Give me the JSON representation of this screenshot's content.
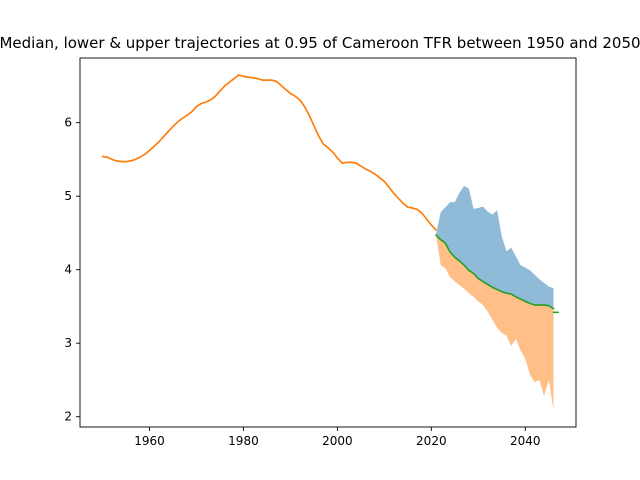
{
  "chart_data": {
    "type": "area",
    "title": "Median, lower & upper trajectories at 0.95 of Cameroon TFR between 1950 and 2050",
    "xlabel": "",
    "ylabel": "",
    "xlim": [
      1945.2,
      2050.8
    ],
    "ylim": [
      1.86,
      6.88
    ],
    "xticks": [
      1960,
      1980,
      2000,
      2020,
      2040
    ],
    "yticks": [
      2,
      3,
      4,
      5,
      6
    ],
    "grid": false,
    "legend": "none",
    "colors": {
      "history": "#ff7f0e",
      "median": "#2ca02c",
      "upper_band": "#1f77b4",
      "lower_band": "#ff7f0e",
      "band_alpha": 0.5
    },
    "history": {
      "x": [
        1950,
        1951,
        1952,
        1953,
        1954,
        1955,
        1956,
        1957,
        1958,
        1959,
        1960,
        1961,
        1962,
        1963,
        1964,
        1965,
        1966,
        1967,
        1968,
        1969,
        1970,
        1971,
        1972,
        1973,
        1974,
        1975,
        1976,
        1977,
        1978,
        1979,
        1980,
        1981,
        1982,
        1983,
        1984,
        1985,
        1986,
        1987,
        1988,
        1989,
        1990,
        1991,
        1992,
        1993,
        1994,
        1995,
        1996,
        1997,
        1998,
        1999,
        2000,
        2001,
        2002,
        2003,
        2004,
        2005,
        2006,
        2007,
        2008,
        2009,
        2010,
        2011,
        2012,
        2013,
        2014,
        2015,
        2016,
        2017,
        2018,
        2019,
        2020,
        2021
      ],
      "y": [
        5.54,
        5.53,
        5.5,
        5.48,
        5.47,
        5.47,
        5.48,
        5.5,
        5.53,
        5.57,
        5.62,
        5.68,
        5.74,
        5.81,
        5.88,
        5.95,
        6.01,
        6.06,
        6.1,
        6.15,
        6.22,
        6.26,
        6.28,
        6.31,
        6.36,
        6.43,
        6.5,
        6.55,
        6.6,
        6.65,
        6.63,
        6.62,
        6.61,
        6.6,
        6.58,
        6.58,
        6.58,
        6.56,
        6.51,
        6.45,
        6.4,
        6.36,
        6.31,
        6.22,
        6.1,
        5.96,
        5.82,
        5.71,
        5.66,
        5.6,
        5.52,
        5.45,
        5.46,
        5.46,
        5.45,
        5.41,
        5.37,
        5.34,
        5.3,
        5.25,
        5.2,
        5.12,
        5.04,
        4.97,
        4.9,
        4.85,
        4.84,
        4.82,
        4.77,
        4.69,
        4.61,
        4.54
      ]
    },
    "median": {
      "x": [
        2021,
        2022,
        2023,
        2024,
        2025,
        2026,
        2027,
        2028,
        2029,
        2030,
        2031,
        2032,
        2033,
        2034,
        2035,
        2036,
        2037,
        2038,
        2039,
        2040,
        2041,
        2042,
        2043,
        2044,
        2045,
        2046
      ],
      "y": [
        4.47,
        4.41,
        4.36,
        4.24,
        4.17,
        4.12,
        4.06,
        3.99,
        3.95,
        3.88,
        3.84,
        3.8,
        3.76,
        3.73,
        3.7,
        3.68,
        3.67,
        3.63,
        3.6,
        3.57,
        3.54,
        3.52,
        3.52,
        3.52,
        3.51,
        3.47
      ]
    },
    "median_tail": {
      "x": [
        2046,
        2047
      ],
      "y": [
        3.42,
        3.42
      ]
    },
    "upper": {
      "x": [
        2021,
        2022,
        2023,
        2024,
        2025,
        2026,
        2027,
        2028,
        2029,
        2030,
        2031,
        2032,
        2033,
        2034,
        2035,
        2036,
        2037,
        2038,
        2039,
        2040,
        2041,
        2042,
        2043,
        2044,
        2045,
        2046
      ],
      "y": [
        4.48,
        4.78,
        4.85,
        4.92,
        4.92,
        5.05,
        5.14,
        5.1,
        4.83,
        4.84,
        4.86,
        4.79,
        4.75,
        4.81,
        4.45,
        4.25,
        4.3,
        4.18,
        4.06,
        4.03,
        3.99,
        3.93,
        3.87,
        3.82,
        3.77,
        3.75
      ]
    },
    "lower": {
      "x": [
        2021,
        2022,
        2023,
        2024,
        2025,
        2026,
        2027,
        2028,
        2029,
        2030,
        2031,
        2032,
        2033,
        2034,
        2035,
        2036,
        2037,
        2038,
        2039,
        2040,
        2041,
        2042,
        2043,
        2044,
        2045,
        2046
      ],
      "y": [
        4.47,
        4.06,
        4.02,
        3.9,
        3.84,
        3.79,
        3.74,
        3.68,
        3.63,
        3.57,
        3.52,
        3.43,
        3.32,
        3.21,
        3.14,
        3.1,
        2.96,
        3.06,
        2.9,
        2.79,
        2.57,
        2.47,
        2.5,
        2.28,
        2.5,
        2.1
      ]
    }
  }
}
